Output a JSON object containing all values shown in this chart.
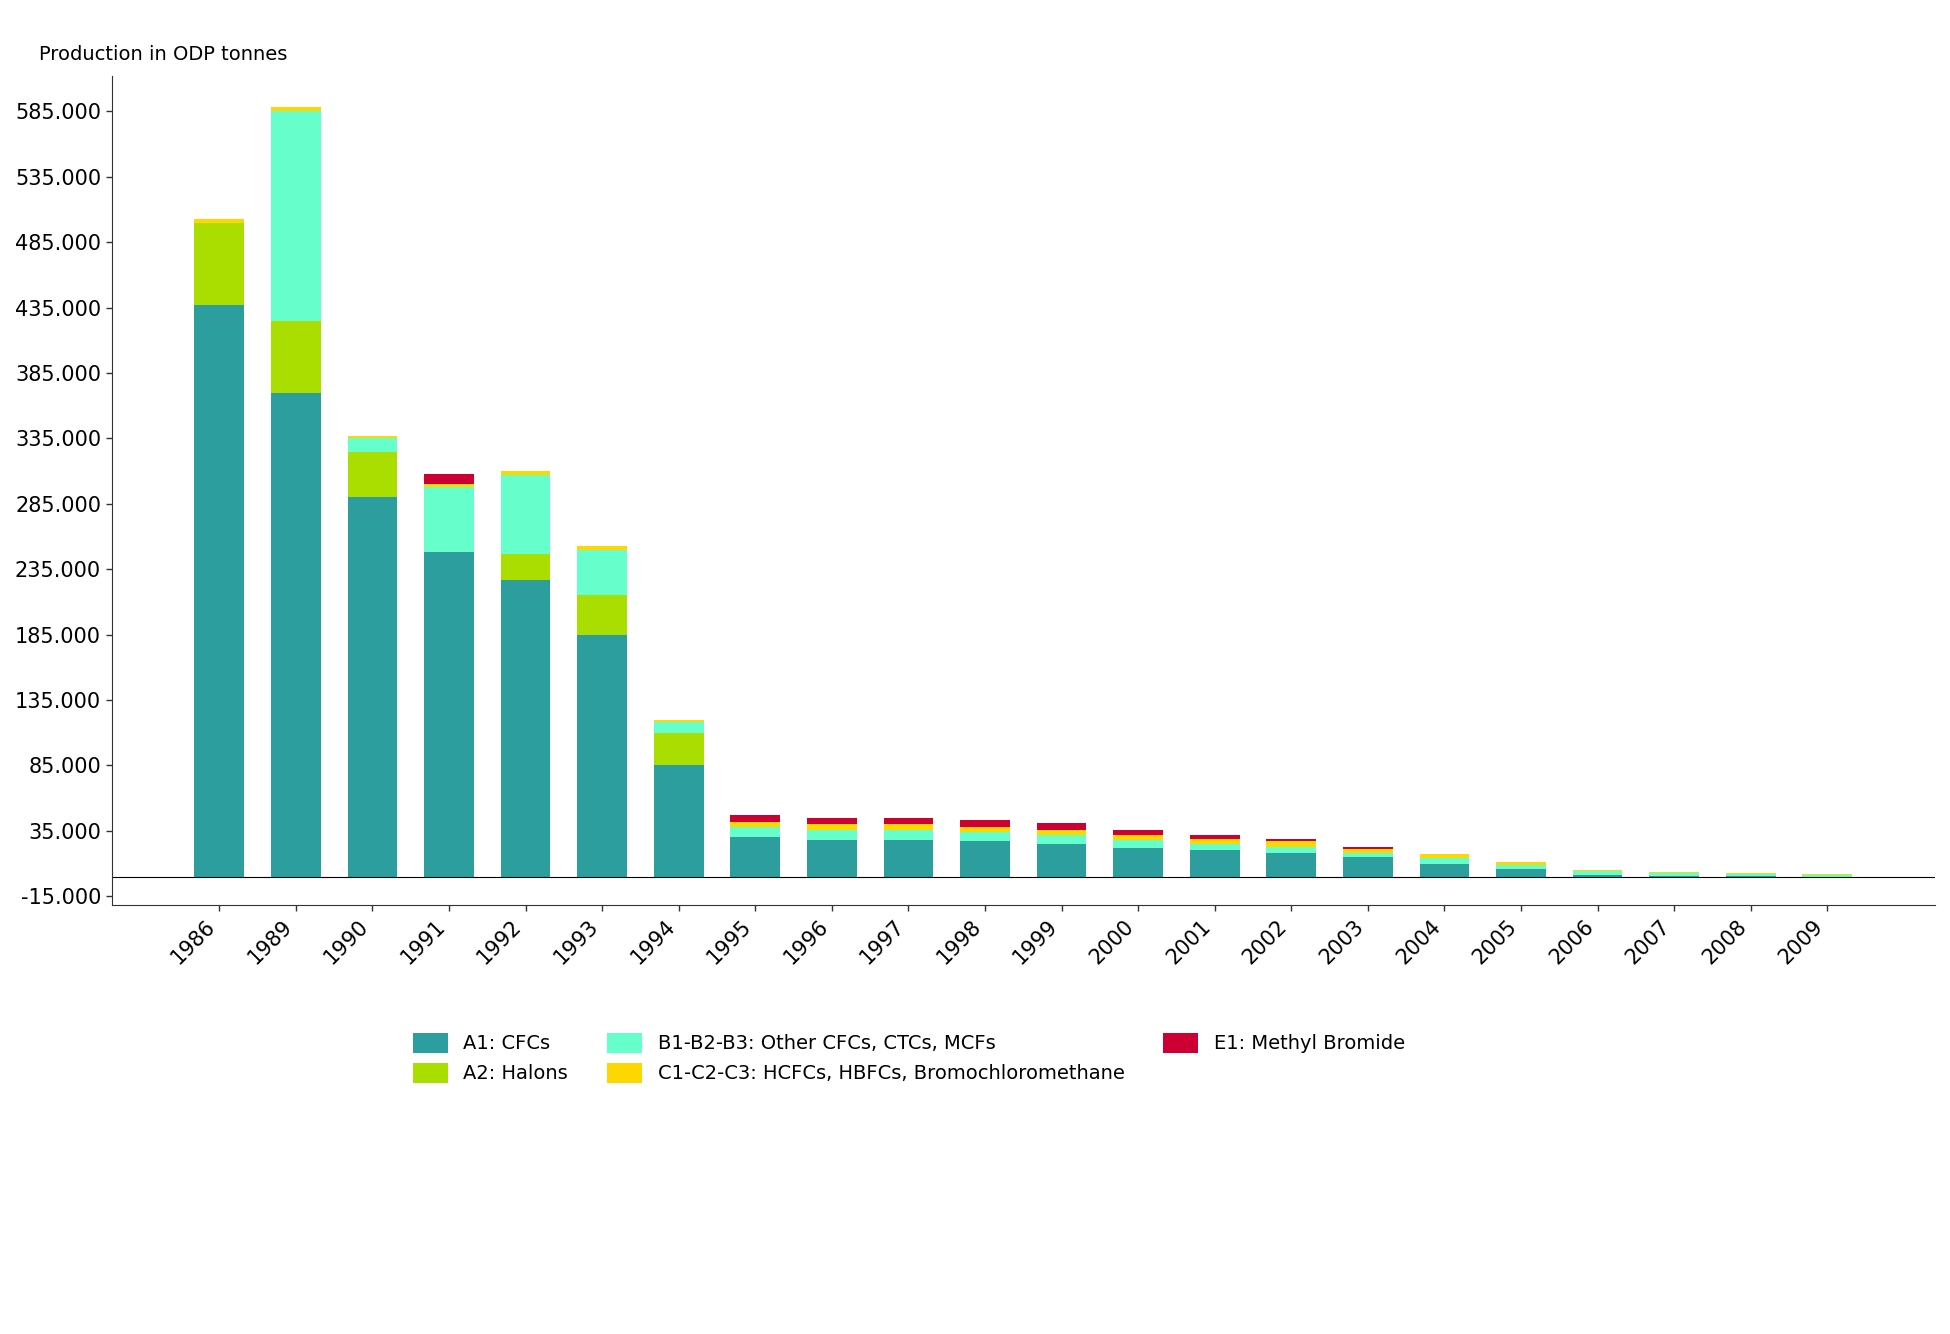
{
  "years": [
    1986,
    1989,
    1990,
    1991,
    1992,
    1993,
    1994,
    1995,
    1996,
    1997,
    1998,
    1999,
    2000,
    2001,
    2002,
    2003,
    2004,
    2005,
    2006,
    2007,
    2008,
    2009
  ],
  "A1_CFCs": [
    437000,
    370000,
    290000,
    248000,
    227000,
    185000,
    85000,
    30000,
    28000,
    28000,
    27000,
    25000,
    22000,
    20000,
    18000,
    15000,
    10000,
    6000,
    1500,
    500,
    200,
    100
  ],
  "A2_Halons": [
    63000,
    55000,
    35000,
    0,
    20000,
    30000,
    25000,
    0,
    0,
    0,
    0,
    0,
    0,
    0,
    0,
    0,
    0,
    0,
    0,
    0,
    0,
    0
  ],
  "B_OtherCFCs": [
    0,
    160000,
    10000,
    50000,
    60000,
    35000,
    8000,
    8000,
    8000,
    8000,
    7000,
    7000,
    6000,
    5000,
    5000,
    3000,
    4000,
    3000,
    2500,
    2500,
    2000,
    1500
  ],
  "C_HCFCs": [
    3000,
    3000,
    2000,
    2000,
    3000,
    3000,
    2000,
    4000,
    4000,
    4000,
    4000,
    4000,
    4000,
    4000,
    4000,
    3000,
    3000,
    2000,
    1000,
    800,
    500,
    300
  ],
  "E1_MethylBr": [
    0,
    0,
    0,
    8000,
    0,
    0,
    0,
    5000,
    5000,
    5000,
    5000,
    5000,
    4000,
    3000,
    2000,
    1500,
    500,
    500,
    200,
    100,
    50,
    0
  ],
  "colors": {
    "A1_CFCs": "#2D9E9E",
    "A2_Halons": "#AADD00",
    "B_OtherCFCs": "#66FFCC",
    "C_HCFCs": "#FFD700",
    "E1_MethylBr": "#CC0033"
  },
  "legend_labels": {
    "A1_CFCs": "A1: CFCs",
    "A2_Halons": "A2: Halons",
    "B_OtherCFCs": "B1-B2-B3: Other CFCs, CTCs, MCFs",
    "C_HCFCs": "C1-C2-C3: HCFCs, HBFCs, Bromochloromethane",
    "E1_MethylBr": "E1: Methyl Bromide"
  },
  "ylabel": "Production in ODP tonnes",
  "yticks": [
    -15000,
    35000,
    85000,
    135000,
    185000,
    235000,
    285000,
    335000,
    385000,
    435000,
    485000,
    535000,
    585000
  ],
  "ytick_labels": [
    "-15.000",
    "35.000",
    "85.000",
    "135.000",
    "185.000",
    "235.000",
    "285.000",
    "335.000",
    "385.000",
    "435.000",
    "485.000",
    "535.000",
    "585.000"
  ],
  "ylim": [
    -22000,
    612000
  ],
  "background_color": "#ffffff"
}
